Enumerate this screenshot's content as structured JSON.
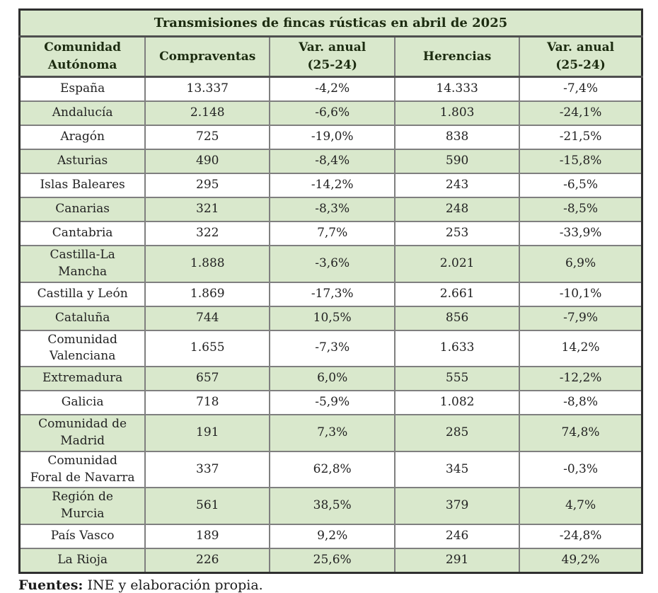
{
  "colors": {
    "shaded_row_green": "#d9e8cc",
    "header_green": "#d9e8cc",
    "outer_border": "#2f2f2f",
    "inner_border": "#7f7f7f",
    "heavy_separator": "#4f4f4f",
    "text": "#222222"
  },
  "chart_data": {
    "type": "table",
    "title": "Transmisiones de fincas rústicas en abril de 2025",
    "columns": [
      "Comunidad\nAutónoma",
      "Compraventas",
      "Var. anual\n(25-24)",
      "Herencias",
      "Var. anual\n(25-24)"
    ],
    "rows": [
      [
        "España",
        "13.337",
        "-4,2%",
        "14.333",
        "-7,4%"
      ],
      [
        "Andalucía",
        "2.148",
        "-6,6%",
        "1.803",
        "-24,1%"
      ],
      [
        "Aragón",
        "725",
        "-19,0%",
        "838",
        "-21,5%"
      ],
      [
        "Asturias",
        "490",
        "-8,4%",
        "590",
        "-15,8%"
      ],
      [
        "Islas Baleares",
        "295",
        "-14,2%",
        "243",
        "-6,5%"
      ],
      [
        "Canarias",
        "321",
        "-8,3%",
        "248",
        "-8,5%"
      ],
      [
        "Cantabria",
        "322",
        "7,7%",
        "253",
        "-33,9%"
      ],
      [
        "Castilla-La\nMancha",
        "1.888",
        "-3,6%",
        "2.021",
        "6,9%"
      ],
      [
        "Castilla y León",
        "1.869",
        "-17,3%",
        "2.661",
        "-10,1%"
      ],
      [
        "Cataluña",
        "744",
        "10,5%",
        "856",
        "-7,9%"
      ],
      [
        "Comunidad\nValenciana",
        "1.655",
        "-7,3%",
        "1.633",
        "14,2%"
      ],
      [
        "Extremadura",
        "657",
        "6,0%",
        "555",
        "-12,2%"
      ],
      [
        "Galicia",
        "718",
        "-5,9%",
        "1.082",
        "-8,8%"
      ],
      [
        "Comunidad de\nMadrid",
        "191",
        "7,3%",
        "285",
        "74,8%"
      ],
      [
        "Comunidad\nForal de Navarra",
        "337",
        "62,8%",
        "345",
        "-0,3%"
      ],
      [
        "Región de\nMurcia",
        "561",
        "38,5%",
        "379",
        "4,7%"
      ],
      [
        "País Vasco",
        "189",
        "9,2%",
        "246",
        "-24,8%"
      ],
      [
        "La Rioja",
        "226",
        "25,6%",
        "291",
        "49,2%"
      ]
    ],
    "row_shading": "alternating white/green, first data row white",
    "legend_position": "none",
    "source": {
      "label": "Fuentes:",
      "text": " INE y elaboración propia."
    }
  }
}
